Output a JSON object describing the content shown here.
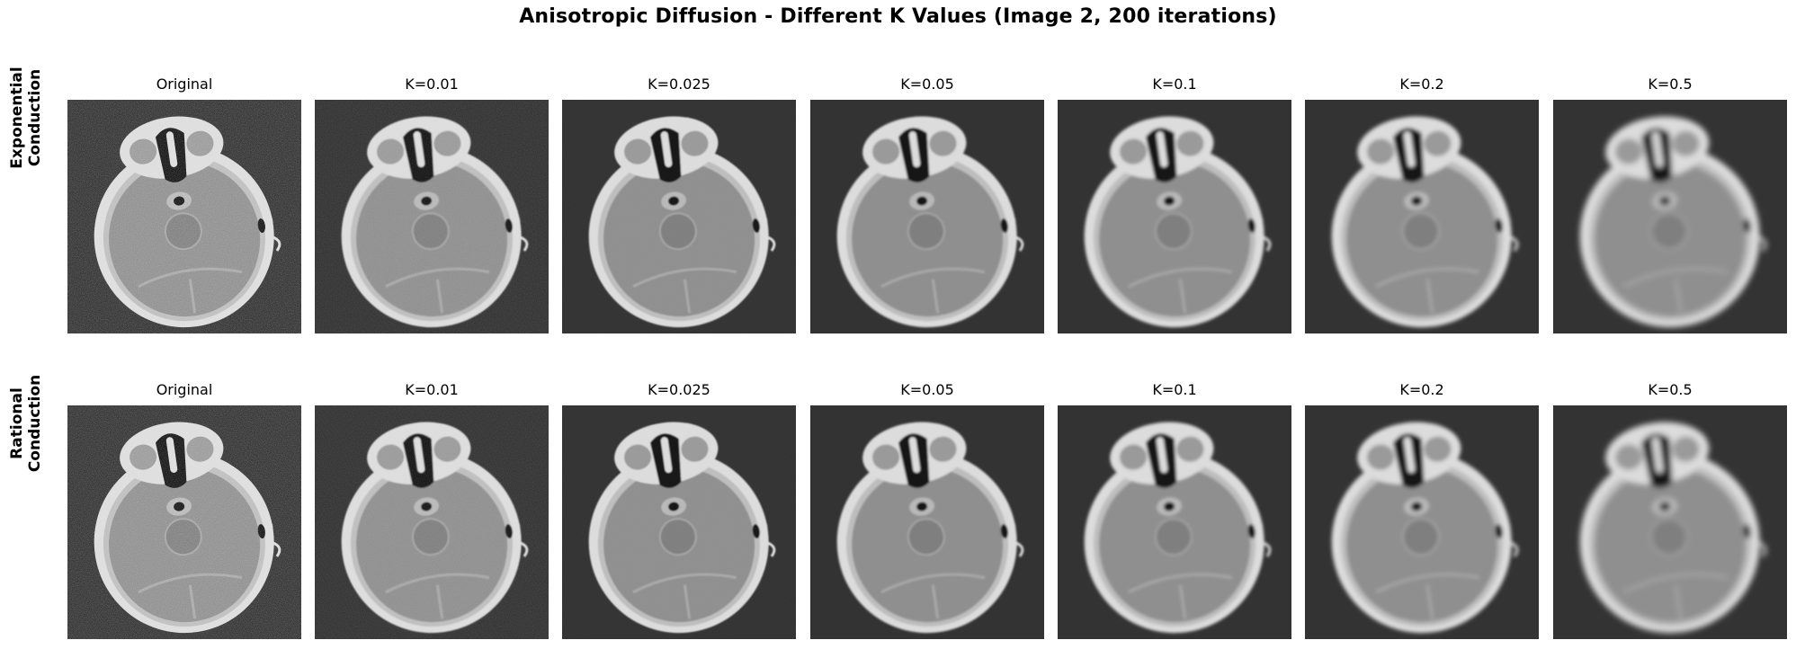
{
  "figure": {
    "title": "Anisotropic Diffusion - Different K Values (Image 2, 200 iterations)"
  },
  "rows": [
    {
      "label_line1": "Exponential",
      "label_line2": "Conduction",
      "panels": [
        {
          "title": "Original",
          "smoothing": 0
        },
        {
          "title": "K=0.01",
          "smoothing": 0.01
        },
        {
          "title": "K=0.025",
          "smoothing": 0.025
        },
        {
          "title": "K=0.05",
          "smoothing": 0.05
        },
        {
          "title": "K=0.1",
          "smoothing": 0.1
        },
        {
          "title": "K=0.2",
          "smoothing": 0.2
        },
        {
          "title": "K=0.5",
          "smoothing": 0.5
        }
      ]
    },
    {
      "label_line1": "Rational",
      "label_line2": "Conduction",
      "panels": [
        {
          "title": "Original",
          "smoothing": 0
        },
        {
          "title": "K=0.01",
          "smoothing": 0.01
        },
        {
          "title": "K=0.025",
          "smoothing": 0.025
        },
        {
          "title": "K=0.05",
          "smoothing": 0.05
        },
        {
          "title": "K=0.1",
          "smoothing": 0.1
        },
        {
          "title": "K=0.2",
          "smoothing": 0.2
        },
        {
          "title": "K=0.5",
          "smoothing": 0.5
        }
      ]
    }
  ],
  "colors": {
    "background": "#333333",
    "skull": "#dcdcdc",
    "brain": "#8f8f8f",
    "dark": "#141414"
  }
}
